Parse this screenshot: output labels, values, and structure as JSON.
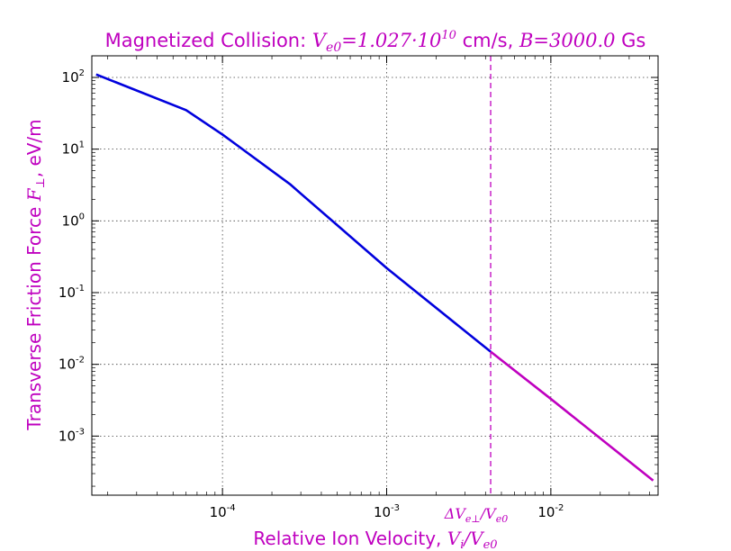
{
  "chart_data": {
    "type": "line",
    "title": {
      "prefix": "Magnetized Collision: ",
      "ve0_symbol": "V",
      "ve0_sub": "e0",
      "ve0_value_mantissa": "=1.027·10",
      "ve0_value_exp": "10",
      "ve0_unit": " cm/s, ",
      "b_symbol": "B",
      "b_value": "=3000.0",
      "b_unit": " Gs"
    },
    "xlabel": {
      "text": "Relative Ion Velocity, ",
      "math_main": "V",
      "math_sub": "i",
      "math_slash": "/V",
      "math_sub2": "e0"
    },
    "ylabel": {
      "text": "Transverse Friction Force ",
      "math_main": "F",
      "math_sub": "⊥",
      "unit": ", eV/m"
    },
    "x_scale": "log",
    "y_scale": "log",
    "xlim": [
      1.6e-05,
      0.045
    ],
    "ylim": [
      0.00015,
      200
    ],
    "x_ticks": [
      {
        "value": 0.0001,
        "base": "10",
        "exp": "-4"
      },
      {
        "value": 0.001,
        "base": "10",
        "exp": "-3"
      },
      {
        "value": 0.01,
        "base": "10",
        "exp": "-2"
      }
    ],
    "y_ticks": [
      {
        "value": 0.001,
        "base": "10",
        "exp": "-3"
      },
      {
        "value": 0.01,
        "base": "10",
        "exp": "-2"
      },
      {
        "value": 0.1,
        "base": "10",
        "exp": "-1"
      },
      {
        "value": 1,
        "base": "10",
        "exp": "0"
      },
      {
        "value": 10,
        "base": "10",
        "exp": "1"
      },
      {
        "value": 100,
        "base": "10",
        "exp": "2"
      }
    ],
    "grid": true,
    "series": [
      {
        "color": "#0000dd",
        "points": [
          [
            1.7e-05,
            110
          ],
          [
            6e-05,
            35
          ],
          [
            0.0001,
            16
          ],
          [
            0.00026,
            3.2
          ],
          [
            0.0003,
            2.4
          ],
          [
            0.001,
            0.22
          ],
          [
            0.0043,
            0.015
          ]
        ]
      },
      {
        "color": "#bf00bf",
        "points": [
          [
            0.0043,
            0.015
          ],
          [
            0.01,
            0.0033
          ],
          [
            0.042,
            0.00024
          ]
        ]
      }
    ],
    "vline": {
      "x": 0.0043,
      "color": "#bf00bf",
      "label_delta": "Δ",
      "label_main": "V",
      "label_sub": "e⊥",
      "label_slash": "/V",
      "label_sub2": "e0"
    }
  }
}
